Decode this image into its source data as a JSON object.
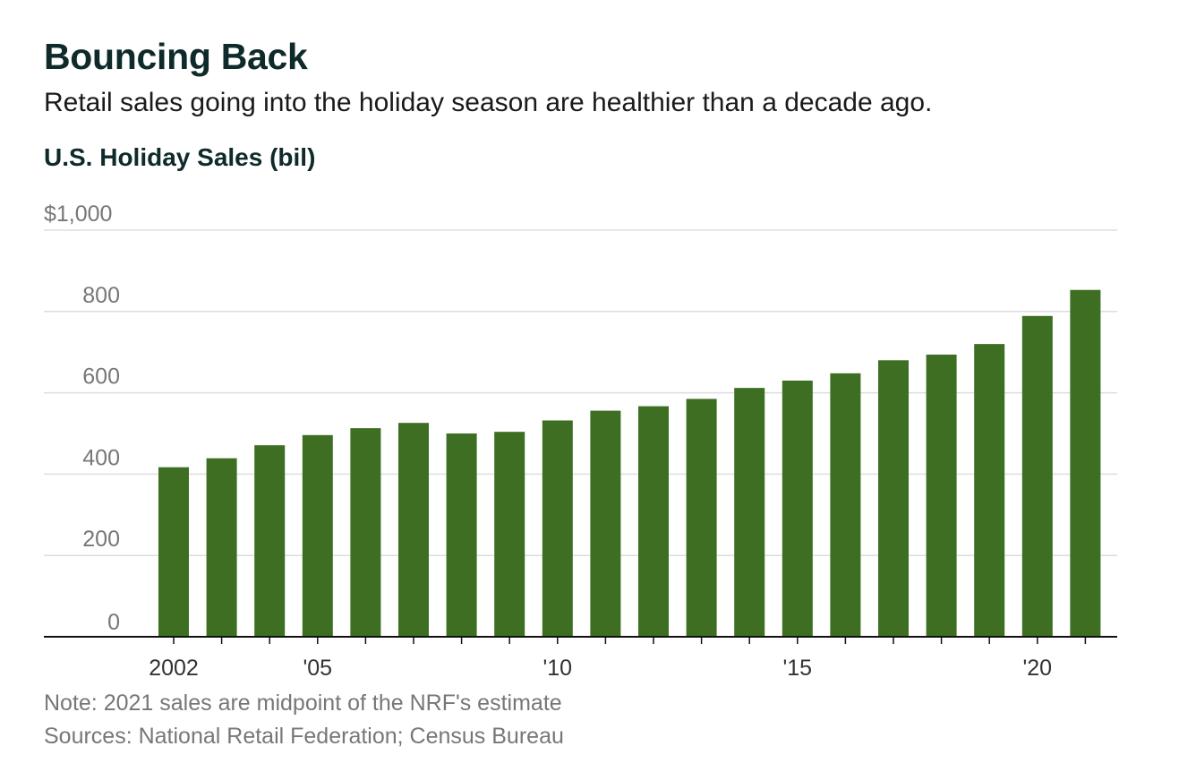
{
  "header": {
    "title": "Bouncing Back",
    "subtitle": "Retail sales going into the holiday season are healthier than a decade ago.",
    "ylabel": "U.S. Holiday Sales (bil)"
  },
  "footer": {
    "note": "Note: 2021 sales are midpoint of the NRF's estimate",
    "sources": "Sources: National Retail Federation; Census Bureau"
  },
  "colors": {
    "bar": "#3d6e22",
    "grid": "#dddddd",
    "axis": "#111111"
  },
  "chart_data": {
    "type": "bar",
    "title": "Bouncing Back",
    "subtitle": "Retail sales going into the holiday season are healthier than a decade ago.",
    "ylabel": "U.S. Holiday Sales (bil)",
    "xlabel": "",
    "categories": [
      2002,
      2003,
      2004,
      2005,
      2006,
      2007,
      2008,
      2009,
      2010,
      2011,
      2012,
      2013,
      2014,
      2015,
      2016,
      2017,
      2018,
      2019,
      2020,
      2021
    ],
    "values": [
      417,
      439,
      471,
      496,
      513,
      526,
      500,
      504,
      532,
      556,
      567,
      585,
      612,
      630,
      648,
      680,
      694,
      720,
      789,
      853
    ],
    "ylim": [
      0,
      1000
    ],
    "yticks": [
      0,
      200,
      400,
      600,
      800,
      1000
    ],
    "ytick_labels": [
      "0",
      "200",
      "400",
      "600",
      "800",
      "$1,000"
    ],
    "xtick_labels": [
      {
        "year": 2002,
        "label": "2002"
      },
      {
        "year": 2005,
        "label": "'05"
      },
      {
        "year": 2010,
        "label": "'10"
      },
      {
        "year": 2015,
        "label": "'15"
      },
      {
        "year": 2020,
        "label": "'20"
      }
    ],
    "grid": true,
    "legend": "none"
  }
}
